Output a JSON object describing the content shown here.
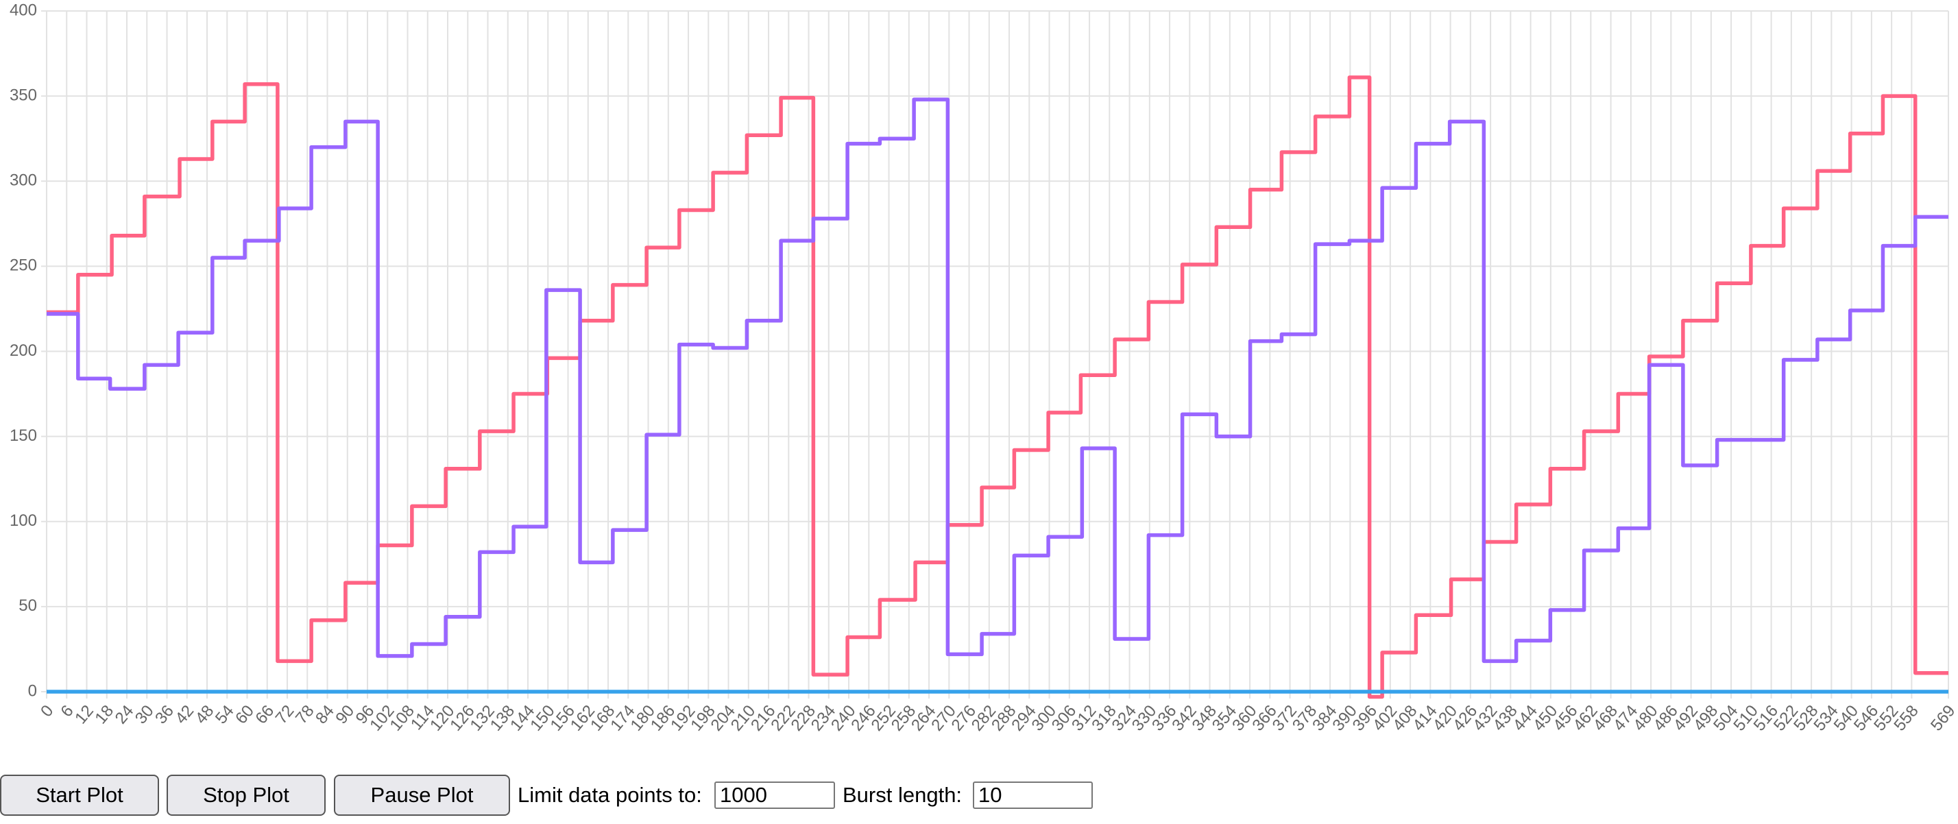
{
  "chart_data": {
    "type": "line",
    "xlim": [
      0,
      569
    ],
    "xticks": [
      0,
      6,
      12,
      18,
      24,
      30,
      36,
      42,
      48,
      54,
      60,
      66,
      72,
      78,
      84,
      90,
      96,
      102,
      108,
      114,
      120,
      126,
      132,
      138,
      144,
      150,
      156,
      162,
      168,
      174,
      180,
      186,
      192,
      198,
      204,
      210,
      216,
      222,
      228,
      234,
      240,
      246,
      252,
      258,
      264,
      270,
      276,
      282,
      288,
      294,
      300,
      306,
      312,
      318,
      324,
      330,
      336,
      342,
      348,
      354,
      360,
      366,
      372,
      378,
      384,
      390,
      396,
      402,
      408,
      414,
      420,
      426,
      432,
      438,
      444,
      450,
      456,
      462,
      468,
      474,
      480,
      486,
      492,
      498,
      504,
      510,
      516,
      522,
      528,
      534,
      540,
      546,
      552,
      558,
      569
    ],
    "ylim": [
      0,
      400
    ],
    "yticks": [
      0,
      50,
      100,
      150,
      200,
      250,
      300,
      350,
      400
    ],
    "grid": true,
    "series": [
      {
        "color": "#ff6384",
        "x": [
          0,
          9.4,
          9.4,
          19.5,
          19.5,
          29.3,
          29.3,
          39.8,
          39.8,
          49.6,
          49.6,
          59.3,
          59.3,
          69.1,
          69.1,
          79.2,
          79.2,
          89.4,
          89.4,
          99.1,
          99.1,
          109.3,
          109.3,
          119.4,
          119.4,
          129.6,
          129.6,
          139.7,
          139.7,
          149.8,
          149.8,
          159.6,
          159.6,
          169.4,
          169.4,
          179.5,
          179.5,
          189.3,
          189.3,
          199.4,
          199.4,
          209.5,
          209.5,
          219.7,
          219.7,
          229.4,
          229.4,
          239.6,
          239.6,
          249.3,
          249.3,
          259.9,
          259.9,
          269.6,
          269.6,
          279.8,
          279.8,
          289.5,
          289.5,
          299.7,
          299.7,
          309.4,
          309.4,
          319.6,
          319.6,
          329.7,
          329.7,
          339.8,
          339.8,
          350,
          350,
          360.1,
          360.1,
          369.5,
          369.5,
          379.6,
          379.6,
          389.8,
          389.8,
          395.8,
          395.8,
          399.6,
          399.6,
          409.7,
          409.7,
          420.2,
          420.2,
          430,
          430,
          439.7,
          439.7,
          449.9,
          449.9,
          460,
          460,
          470.2,
          470.2,
          479.5,
          479.5,
          489.6,
          489.6,
          499.8,
          499.8,
          509.9,
          509.9,
          519.7,
          519.7,
          529.8,
          529.8,
          539.6,
          539.6,
          549.4,
          549.4,
          559.1,
          559.1,
          569
        ],
        "values": [
          223,
          223,
          245,
          245,
          268,
          268,
          291,
          291,
          313,
          313,
          335,
          335,
          357,
          357,
          18,
          18,
          42,
          42,
          64,
          64,
          86,
          86,
          109,
          109,
          131,
          131,
          153,
          153,
          175,
          175,
          196,
          196,
          218,
          218,
          239,
          239,
          261,
          261,
          283,
          283,
          305,
          305,
          327,
          327,
          349,
          349,
          10,
          10,
          32,
          32,
          54,
          54,
          76,
          76,
          98,
          98,
          120,
          120,
          142,
          142,
          164,
          164,
          186,
          186,
          207,
          207,
          229,
          229,
          251,
          251,
          273,
          273,
          295,
          295,
          317,
          317,
          338,
          338,
          361,
          361,
          -3,
          -3,
          23,
          23,
          45,
          45,
          66,
          66,
          88,
          88,
          110,
          110,
          131,
          131,
          153,
          153,
          175,
          175,
          197,
          197,
          218,
          218,
          240,
          240,
          262,
          262,
          284,
          284,
          306,
          306,
          328,
          328,
          350,
          350,
          11,
          11
        ]
      },
      {
        "color": "#9966ff",
        "x": [
          0,
          9.4,
          9.4,
          19,
          19,
          29.3,
          29.3,
          39.4,
          39.4,
          49.6,
          49.6,
          59.3,
          59.3,
          69.5,
          69.5,
          79.2,
          79.2,
          89.4,
          89.4,
          99.1,
          99.1,
          109.3,
          109.3,
          119.4,
          119.4,
          129.6,
          129.6,
          139.7,
          139.7,
          149.5,
          149.5,
          159.6,
          159.6,
          169.4,
          169.4,
          179.5,
          179.5,
          189.3,
          189.3,
          199.4,
          199.4,
          209.5,
          209.5,
          219.7,
          219.7,
          229.4,
          229.4,
          239.6,
          239.6,
          249.3,
          249.3,
          259.5,
          259.5,
          269.6,
          269.6,
          279.8,
          279.8,
          289.5,
          289.5,
          299.7,
          299.7,
          309.8,
          309.8,
          319.6,
          319.6,
          329.7,
          329.7,
          339.8,
          339.8,
          350,
          350,
          360.1,
          360.1,
          369.5,
          369.5,
          379.6,
          379.6,
          389.8,
          389.8,
          399.6,
          399.6,
          409.7,
          409.7,
          419.8,
          419.8,
          430,
          430,
          439.7,
          439.7,
          449.9,
          449.9,
          460,
          460,
          470.2,
          470.2,
          479.5,
          479.5,
          489.6,
          489.6,
          499.8,
          499.8,
          519.7,
          519.7,
          529.8,
          529.8,
          539.6,
          539.6,
          549.4,
          549.4,
          559.1,
          559.1,
          569
        ],
        "values": [
          222,
          222,
          184,
          184,
          178,
          178,
          192,
          192,
          211,
          211,
          255,
          255,
          265,
          265,
          284,
          284,
          320,
          320,
          335,
          335,
          21,
          21,
          28,
          28,
          44,
          44,
          82,
          82,
          97,
          97,
          236,
          236,
          76,
          76,
          95,
          95,
          151,
          151,
          204,
          204,
          202,
          202,
          218,
          218,
          265,
          265,
          278,
          278,
          322,
          322,
          325,
          325,
          348,
          348,
          22,
          22,
          34,
          34,
          80,
          80,
          91,
          91,
          143,
          143,
          31,
          31,
          92,
          92,
          163,
          163,
          150,
          150,
          206,
          206,
          210,
          210,
          263,
          263,
          265,
          265,
          296,
          296,
          322,
          322,
          335,
          335,
          18,
          18,
          30,
          30,
          48,
          48,
          83,
          83,
          96,
          96,
          192,
          192,
          133,
          133,
          148,
          148,
          195,
          195,
          207,
          207,
          224,
          224,
          262,
          262,
          279,
          279
        ]
      },
      {
        "color": "#36a2eb",
        "x": [
          0,
          569
        ],
        "values": [
          0,
          0
        ]
      }
    ]
  },
  "controls": {
    "start": "Start Plot",
    "stop": "Stop Plot",
    "pause": "Pause Plot",
    "limit_label": "Limit data points to:",
    "limit_value": "1000",
    "burst_label": "Burst length:",
    "burst_value": "10"
  }
}
